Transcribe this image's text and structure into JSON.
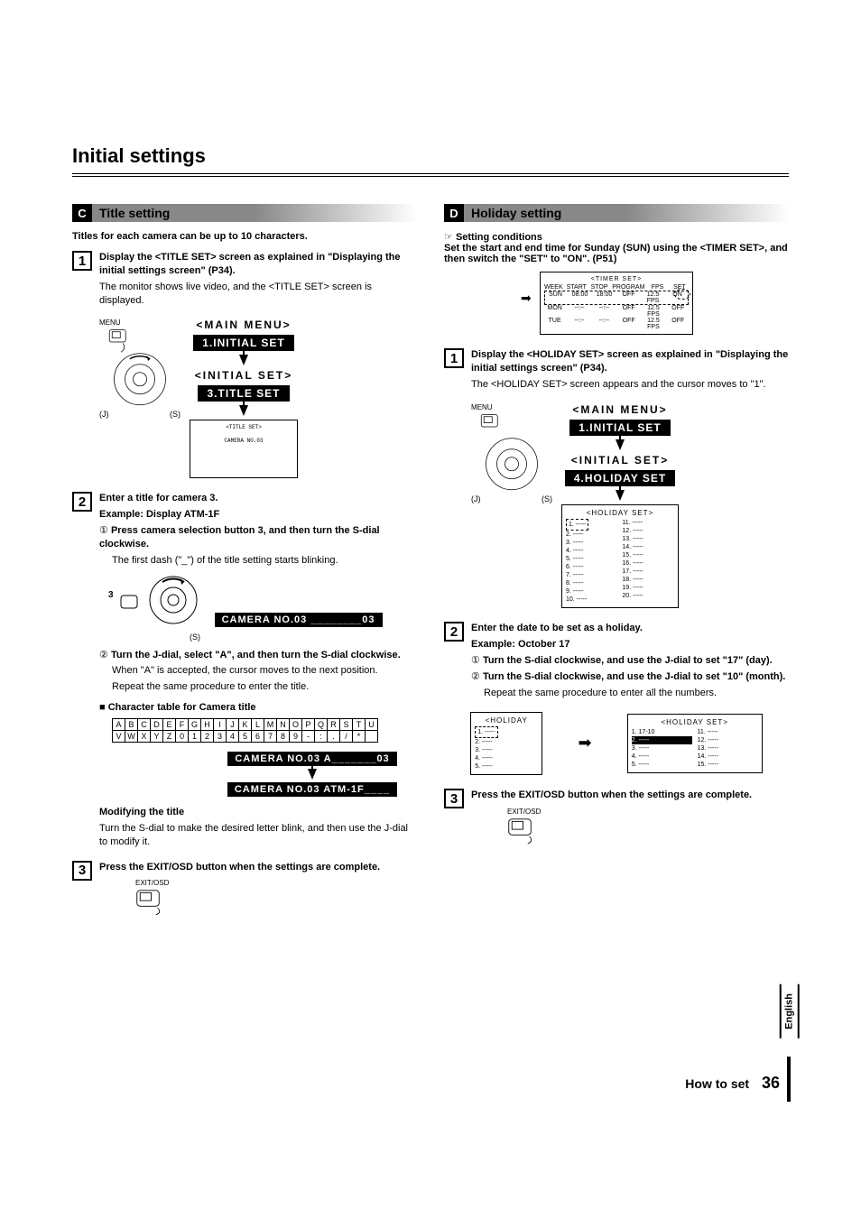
{
  "page_title": "Initial settings",
  "section_c": {
    "letter": "C",
    "title": "Title setting",
    "subtitle": "Titles for each camera can be up to 10 characters.",
    "step1": {
      "num": "1",
      "bold": "Display the <TITLE SET> screen as explained in \"Displaying the initial settings screen\" (P34).",
      "text": "The monitor shows live video, and the <TITLE SET> screen is displayed."
    },
    "menu": {
      "main": "<MAIN MENU>",
      "initial_set": "1.INITIAL SET",
      "initial_tag": "<INITIAL SET>",
      "title_set": "3.TITLE SET",
      "title_tag": "<TITLE SET>",
      "camera_small": "CAMERA NO.03"
    },
    "j_label": "(J)",
    "s_label": "(S)",
    "menu_label": "MENU",
    "step2": {
      "num": "2",
      "bold": "Enter a title for camera 3.",
      "example": "Example: Display ATM-1F",
      "sub1_bold": "Press camera selection button 3, and then turn the S-dial clockwise.",
      "sub1_text": "The first dash (\"_\") of the title setting starts blinking.",
      "sub1_circ": "①",
      "cam_label_3": "3",
      "camera_bar1": "CAMERA NO.03  ________03",
      "sub2_circ": "②",
      "sub2_bold": "Turn the J-dial, select \"A\", and then turn the S-dial clockwise.",
      "sub2_text1": "When \"A\" is accepted, the cursor moves to the next position.",
      "sub2_text2": "Repeat the same procedure to enter the title.",
      "char_heading": "■ Character table for Camera title",
      "char_row1": [
        "A",
        "B",
        "C",
        "D",
        "E",
        "F",
        "G",
        "H",
        "I",
        "J",
        "K",
        "L",
        "M",
        "N",
        "O",
        "P",
        "Q",
        "R",
        "S",
        "T",
        "U"
      ],
      "char_row2": [
        "V",
        "W",
        "X",
        "Y",
        "Z",
        "0",
        "1",
        "2",
        "3",
        "4",
        "5",
        "6",
        "7",
        "8",
        "9",
        "-",
        ":",
        ".",
        "/",
        "*",
        ""
      ],
      "camera_bar2": "CAMERA NO.03  A_______03",
      "camera_bar3": "CAMERA NO.03  ATM-1F____",
      "modify_bold": "Modifying the title",
      "modify_text": "Turn the S-dial to make the desired letter blink, and then use the J-dial to modify it."
    },
    "step3": {
      "num": "3",
      "bold": "Press the EXIT/OSD button when the settings are complete.",
      "exit_label": "EXIT/OSD"
    }
  },
  "section_d": {
    "letter": "D",
    "title": "Holiday setting",
    "pointer": "☞",
    "cond_bold": "Setting conditions",
    "cond_text": "Set the start and end time for Sunday (SUN) using the <TIMER SET>, and then switch the \"SET\" to \"ON\". (P51)",
    "timer": {
      "title": "<TIMER SET>",
      "header": [
        "WEEK",
        "START",
        "STOP",
        "PROGRAM",
        "FPS",
        "SET"
      ],
      "sun": [
        "SUN",
        "08:00",
        "18:00",
        "OFF",
        "12.5 FPS",
        "ON"
      ],
      "mon": [
        "MON",
        "--:--",
        "--:--",
        "OFF",
        "12.5 FPS",
        "OFF"
      ],
      "tue": [
        "TUE",
        "--:--",
        "--:--",
        "OFF",
        "12.5 FPS",
        "OFF"
      ]
    },
    "step1": {
      "num": "1",
      "bold": "Display the <HOLIDAY SET> screen as explained in \"Displaying the initial settings screen\" (P34).",
      "text": "The <HOLIDAY SET> screen appears and the cursor moves to \"1\"."
    },
    "menu": {
      "main": "<MAIN MENU>",
      "initial_set": "1.INITIAL SET",
      "initial_tag": "<INITIAL SET>",
      "holiday_set": "4.HOLIDAY SET"
    },
    "holiday_list": {
      "title": "<HOLIDAY SET>",
      "left": [
        "1. -----",
        "2. -----",
        "3. -----",
        "4. -----",
        "5. -----",
        "6. -----",
        "7. -----",
        "8. -----",
        "9. -----",
        "10. -----"
      ],
      "right": [
        "11. -----",
        "12. -----",
        "13. -----",
        "14. -----",
        "15. -----",
        "16. -----",
        "17. -----",
        "18. -----",
        "19. -----",
        "20. -----"
      ]
    },
    "step2": {
      "num": "2",
      "bold": "Enter the date to be set as a holiday.",
      "example": "Example: October 17",
      "sub1_circ": "①",
      "sub1_bold": "Turn the S-dial clockwise, and use the J-dial to set \"17\" (day).",
      "sub2_circ": "②",
      "sub2_bold": "Turn the S-dial clockwise, and use the J-dial to set \"10\" (month).",
      "sub2_text": "Repeat the same procedure to enter all the numbers."
    },
    "holiday_small": {
      "title": "<HOLIDAY",
      "left": [
        "1. -----",
        "2. -----",
        "3. -----",
        "4. -----",
        "5. -----"
      ]
    },
    "holiday_result": {
      "title": "<HOLIDAY SET>",
      "left": [
        "1. 17-10",
        "2. -----",
        "3. -----",
        "4. -----",
        "5. -----"
      ],
      "right": [
        "11. -----",
        "12. -----",
        "13. -----",
        "14. -----",
        "15. -----"
      ]
    },
    "step3": {
      "num": "3",
      "bold": "Press the EXIT/OSD button when the settings are complete.",
      "exit_label": "EXIT/OSD"
    }
  },
  "footer": {
    "howto": "How to set",
    "page": "36",
    "lang": "English"
  }
}
